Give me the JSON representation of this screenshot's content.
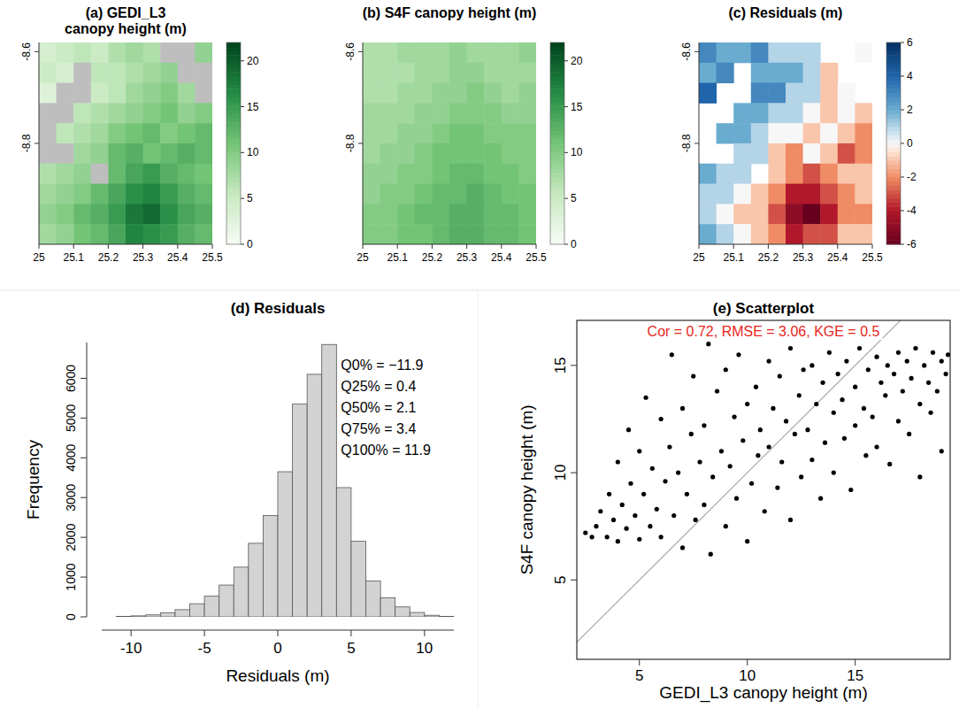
{
  "chart_data": [
    {
      "type": "heatmap",
      "title": "(a) GEDI_L3 canopy height (m)",
      "xlim": [
        25,
        25.5
      ],
      "xticks": [
        25,
        25.1,
        25.2,
        25.3,
        25.4,
        25.5
      ],
      "ylim": [
        -9.02,
        -8.58
      ],
      "yticks": [
        -8.6,
        -8.8
      ],
      "cells": [
        [
          4,
          5,
          6,
          5,
          7,
          8,
          7,
          null,
          null,
          9
        ],
        [
          5,
          4,
          null,
          6,
          6,
          7,
          8,
          9,
          null,
          null
        ],
        [
          3,
          null,
          null,
          5,
          6,
          8,
          9,
          10,
          8,
          null
        ],
        [
          null,
          null,
          6,
          7,
          8,
          9,
          10,
          11,
          9,
          10
        ],
        [
          null,
          6,
          7,
          8,
          10,
          11,
          12,
          10,
          11,
          12
        ],
        [
          null,
          null,
          8,
          9,
          12,
          13,
          11,
          12,
          13,
          12
        ],
        [
          7,
          8,
          9,
          null,
          12,
          14,
          15,
          13,
          12,
          11
        ],
        [
          8,
          9,
          10,
          12,
          14,
          16,
          17,
          15,
          13,
          12
        ],
        [
          9,
          10,
          12,
          13,
          15,
          18,
          19,
          16,
          14,
          13
        ],
        [
          8,
          9,
          11,
          12,
          14,
          17,
          16,
          15,
          13,
          12
        ]
      ],
      "color_range": [
        0,
        22
      ],
      "color_ticks": [
        0,
        5,
        10,
        15,
        20
      ]
    },
    {
      "type": "heatmap",
      "title": "(b) S4F canopy height (m)",
      "xlim": [
        25,
        25.5
      ],
      "xticks": [
        25,
        25.1,
        25.2,
        25.3,
        25.4,
        25.5
      ],
      "ylim": [
        -9.02,
        -8.58
      ],
      "yticks": [
        -8.6,
        -8.8
      ],
      "cells": [
        [
          7,
          7,
          8,
          8,
          8,
          9,
          8,
          8,
          8,
          9
        ],
        [
          7,
          7,
          7,
          8,
          8,
          9,
          9,
          8,
          8,
          8
        ],
        [
          7,
          7,
          8,
          8,
          9,
          9,
          10,
          9,
          8,
          9
        ],
        [
          8,
          8,
          8,
          9,
          9,
          10,
          10,
          10,
          9,
          9
        ],
        [
          8,
          8,
          9,
          9,
          10,
          11,
          11,
          10,
          10,
          10
        ],
        [
          8,
          9,
          9,
          10,
          11,
          11,
          11,
          11,
          10,
          10
        ],
        [
          9,
          9,
          10,
          10,
          11,
          12,
          12,
          11,
          11,
          10
        ],
        [
          9,
          10,
          10,
          11,
          12,
          12,
          13,
          12,
          11,
          11
        ],
        [
          10,
          10,
          11,
          12,
          12,
          13,
          13,
          12,
          12,
          11
        ],
        [
          10,
          10,
          11,
          11,
          12,
          13,
          13,
          12,
          12,
          11
        ]
      ],
      "color_range": [
        0,
        22
      ],
      "color_ticks": [
        0,
        5,
        10,
        15,
        20
      ]
    },
    {
      "type": "heatmap",
      "title": "(c) Residuals (m)",
      "xlim": [
        25,
        25.5
      ],
      "xticks": [
        25,
        25.1,
        25.2,
        25.3,
        25.4,
        25.5
      ],
      "ylim": [
        -9.02,
        -8.58
      ],
      "yticks": [
        -8.6,
        -8.8
      ],
      "cells": [
        [
          3,
          2,
          2,
          3,
          1,
          1,
          1,
          null,
          null,
          0
        ],
        [
          2,
          3,
          null,
          2,
          2,
          2,
          1,
          -1,
          null,
          null
        ],
        [
          4,
          null,
          null,
          3,
          3,
          1,
          1,
          -1,
          0,
          null
        ],
        [
          null,
          null,
          2,
          2,
          1,
          1,
          0,
          -1,
          0,
          -1
        ],
        [
          null,
          2,
          2,
          1,
          0,
          0,
          -1,
          0,
          -1,
          -2
        ],
        [
          null,
          null,
          1,
          1,
          -1,
          -2,
          0,
          -1,
          -3,
          -2
        ],
        [
          2,
          1,
          1,
          null,
          -1,
          -2,
          -3,
          -2,
          -1,
          -1
        ],
        [
          1,
          1,
          0,
          -1,
          -2,
          -4,
          -4,
          -3,
          -2,
          -1
        ],
        [
          1,
          0,
          -1,
          -1,
          -3,
          -5,
          -6,
          -4,
          -2,
          -2
        ],
        [
          2,
          1,
          0,
          -1,
          -2,
          -4,
          -3,
          -3,
          -1,
          -1
        ]
      ],
      "color_range": [
        -6,
        6
      ],
      "color_ticks": [
        -6,
        -4,
        -2,
        0,
        2,
        4,
        6
      ]
    },
    {
      "type": "histogram",
      "title": "(d) Residuals",
      "xlabel": "Residuals (m)",
      "ylabel": "Frequency",
      "bins": [
        -12,
        -11,
        -10,
        -9,
        -8,
        -7,
        -6,
        -5,
        -4,
        -3,
        -2,
        -1,
        0,
        1,
        2,
        3,
        4,
        5,
        6,
        7,
        8,
        9,
        10,
        11,
        12
      ],
      "counts": [
        0,
        10,
        25,
        50,
        100,
        180,
        330,
        520,
        800,
        1250,
        1850,
        2550,
        3650,
        5350,
        6100,
        6850,
        3250,
        1900,
        900,
        480,
        250,
        110,
        40,
        12
      ],
      "color": "#d3d3d3",
      "xlim": [
        -12,
        12
      ],
      "xticks": [
        -10,
        -5,
        0,
        5,
        10
      ],
      "ylim": [
        0,
        6900
      ],
      "yticks": [
        0,
        1000,
        2000,
        3000,
        4000,
        5000,
        6000
      ],
      "annotations": [
        "Q0% = −11.9",
        "Q25% = 0.4",
        "Q50% = 2.1",
        "Q75% = 3.4",
        "Q100% = 11.9"
      ]
    },
    {
      "type": "scatter",
      "title": "(e) Scatterplot",
      "xlabel": "GEDI_L3 canopy height (m)",
      "ylabel": "S4F canopy height (m)",
      "annotation": "Cor = 0.72, RMSE = 3.06, KGE = 0.5",
      "color": "#000000",
      "xlim": [
        2.1,
        19.4
      ],
      "xticks": [
        5,
        10,
        15
      ],
      "ylim": [
        1.3,
        17.1
      ],
      "yticks": [
        5,
        10,
        15
      ],
      "x": [
        2.5,
        2.8,
        3.0,
        3.2,
        3.5,
        3.6,
        3.8,
        4.0,
        4.0,
        4.2,
        4.4,
        4.5,
        4.6,
        4.8,
        5.0,
        5.0,
        5.2,
        5.3,
        5.5,
        5.6,
        5.8,
        6.0,
        6.0,
        6.2,
        6.4,
        6.5,
        6.6,
        6.8,
        7.0,
        7.0,
        7.2,
        7.4,
        7.5,
        7.6,
        7.8,
        8.0,
        8.0,
        8.2,
        8.3,
        8.4,
        8.6,
        8.8,
        9.0,
        9.0,
        9.2,
        9.4,
        9.5,
        9.6,
        9.8,
        10.0,
        10.0,
        10.2,
        10.4,
        10.5,
        10.6,
        10.8,
        11.0,
        11.0,
        11.2,
        11.4,
        11.5,
        11.6,
        11.8,
        12.0,
        12.0,
        12.2,
        12.4,
        12.5,
        12.6,
        12.8,
        13.0,
        13.0,
        13.2,
        13.4,
        13.5,
        13.6,
        13.8,
        14.0,
        14.0,
        14.2,
        14.4,
        14.5,
        14.6,
        14.8,
        15.0,
        15.0,
        15.2,
        15.4,
        15.5,
        15.6,
        15.8,
        16.0,
        16.0,
        16.2,
        16.4,
        16.5,
        16.6,
        16.8,
        17.0,
        17.0,
        17.2,
        17.4,
        17.5,
        17.6,
        17.8,
        18.0,
        18.0,
        18.2,
        18.4,
        18.5,
        18.6,
        18.8,
        19.0,
        19.0,
        19.2,
        19.3
      ],
      "y": [
        7.2,
        7.0,
        7.5,
        8.2,
        7.0,
        9.0,
        7.8,
        6.8,
        10.5,
        8.5,
        7.4,
        12.0,
        9.5,
        8.0,
        6.9,
        11.0,
        9.0,
        13.5,
        7.5,
        10.2,
        8.3,
        12.5,
        7.0,
        9.6,
        11.2,
        15.5,
        8.0,
        10.0,
        13.0,
        6.5,
        9.0,
        11.8,
        14.5,
        7.8,
        10.5,
        12.2,
        8.5,
        16.0,
        6.2,
        9.8,
        13.8,
        11.0,
        7.5,
        14.8,
        10.3,
        12.6,
        8.8,
        15.5,
        11.5,
        6.8,
        13.2,
        9.5,
        14.0,
        10.8,
        12.0,
        8.2,
        15.2,
        11.2,
        13.0,
        9.3,
        14.5,
        10.5,
        12.4,
        7.8,
        15.8,
        11.8,
        13.6,
        9.8,
        14.8,
        12.0,
        10.6,
        15.0,
        13.2,
        8.8,
        14.2,
        11.4,
        15.6,
        12.8,
        10.0,
        14.6,
        13.4,
        11.6,
        15.2,
        9.2,
        14.0,
        12.2,
        15.8,
        13.0,
        10.8,
        14.8,
        12.6,
        15.4,
        11.2,
        14.2,
        13.6,
        15.0,
        10.4,
        14.6,
        12.4,
        15.6,
        13.8,
        15.2,
        11.8,
        14.4,
        15.8,
        13.2,
        9.8,
        15.0,
        14.2,
        12.8,
        15.6,
        13.8,
        15.2,
        11.0,
        14.6,
        15.5
      ]
    }
  ]
}
